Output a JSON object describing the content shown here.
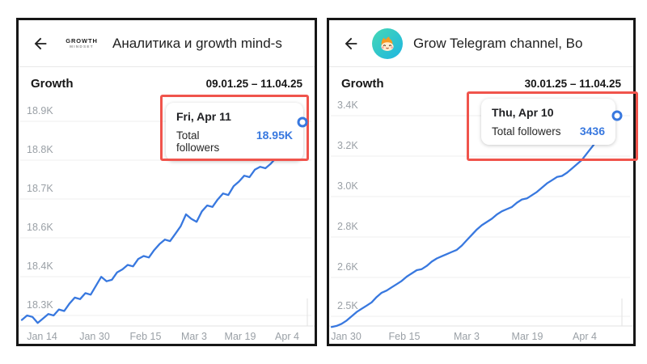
{
  "colors": {
    "accent_blue": "#3878df",
    "annotation_red": "#f0544c",
    "grid": "#efefef",
    "axis_baseline": "#e2e2e2",
    "axis_text": "#9aa0a6",
    "header_text": "#1f1f1f"
  },
  "panels": [
    {
      "header": {
        "logo_line1": "GROWTH",
        "logo_line2": "MINDSET",
        "title": "Аналитика и growth mind-s"
      }
    },
    {
      "header": {
        "title": "Grow Telegram channel, Bo"
      }
    }
  ],
  "chart_data": [
    {
      "type": "line",
      "title": "Growth",
      "date_range": "09.01.25 – 11.04.25",
      "x_ticks": [
        "Jan 14",
        "Jan 30",
        "Feb 15",
        "Mar 3",
        "Mar 19",
        "Apr 4"
      ],
      "y_ticks": [
        "18.9K",
        "18.8K",
        "18.7K",
        "18.6K",
        "18.4K",
        "18.3K"
      ],
      "ylim_k": [
        18.26,
        18.97
      ],
      "grid": true,
      "legend": false,
      "series": [
        {
          "name": "Total followers",
          "values_k": [
            18.285,
            18.3,
            18.295,
            18.275,
            18.29,
            18.305,
            18.3,
            18.32,
            18.315,
            18.34,
            18.36,
            18.355,
            18.375,
            18.37,
            18.4,
            18.43,
            18.415,
            18.42,
            18.445,
            18.455,
            18.47,
            18.465,
            18.49,
            18.5,
            18.495,
            18.52,
            18.54,
            18.555,
            18.55,
            18.575,
            18.6,
            18.64,
            18.625,
            18.615,
            18.65,
            18.67,
            18.665,
            18.69,
            18.71,
            18.705,
            18.735,
            18.75,
            18.77,
            18.765,
            18.79,
            18.8,
            18.795,
            18.81,
            18.83,
            18.85,
            18.88,
            18.895,
            18.92,
            18.95
          ]
        }
      ],
      "highlight": {
        "date": "Fri, Apr 11",
        "label": "Total followers",
        "value": "18.95K"
      }
    },
    {
      "type": "line",
      "title": "Growth",
      "date_range": "30.01.25 – 11.04.25",
      "x_ticks": [
        "Jan 30",
        "Feb 15",
        "Mar 3",
        "Mar 19",
        "Apr 4"
      ],
      "y_ticks": [
        "3.4K",
        "3.2K",
        "3.0K",
        "2.8K",
        "2.6K",
        "2.5K"
      ],
      "ylim_k": [
        2.44,
        3.46
      ],
      "grid": true,
      "legend": false,
      "series": [
        {
          "name": "Total followers",
          "values_k": [
            2.45,
            2.455,
            2.465,
            2.48,
            2.5,
            2.52,
            2.535,
            2.55,
            2.565,
            2.59,
            2.61,
            2.62,
            2.635,
            2.65,
            2.665,
            2.685,
            2.7,
            2.715,
            2.72,
            2.735,
            2.755,
            2.77,
            2.78,
            2.79,
            2.8,
            2.81,
            2.83,
            2.855,
            2.88,
            2.905,
            2.925,
            2.94,
            2.955,
            2.975,
            2.99,
            3.0,
            3.01,
            3.03,
            3.045,
            3.05,
            3.065,
            3.08,
            3.1,
            3.12,
            3.135,
            3.15,
            3.155,
            3.17,
            3.19,
            3.21,
            3.23,
            3.26,
            3.29,
            3.32,
            3.36,
            3.4,
            3.425,
            3.436
          ]
        }
      ],
      "highlight": {
        "date": "Thu, Apr 10",
        "label": "Total followers",
        "value": "3436"
      }
    }
  ]
}
